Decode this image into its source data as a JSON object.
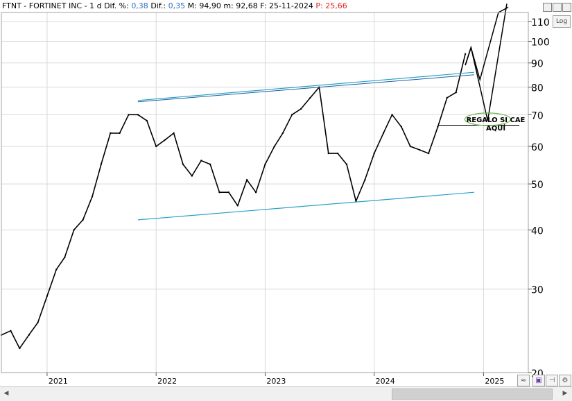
{
  "header": {
    "ticker": "FTNT - FORTINET INC -",
    "timeframe": "1 d",
    "dif_pct_label": "Dif. %:",
    "dif_pct_value": "0,38",
    "dif_label": "Dif.:",
    "dif_value": "0,35",
    "max_label": "M:",
    "max_value": "94,90",
    "min_label": "m:",
    "min_value": "92,68",
    "date_label": "F:",
    "date_value": "25-11-2024",
    "price_label": "P:",
    "price_value": "25,66"
  },
  "controls": {
    "log_label": "Log"
  },
  "annotation": {
    "line1": "REGALO SI CAE",
    "line2": "AQUÍ"
  },
  "colors": {
    "price": "#000000",
    "channel": "#2aa0c8",
    "ellipse": "#6cb84e",
    "grid": "#d8d8d8",
    "header_value": "#2f6fc0",
    "header_price": "#e02020"
  },
  "chart_data": {
    "type": "line",
    "scale": "log",
    "ylim": [
      20,
      115
    ],
    "xlim": [
      "2020-08-01",
      "2025-05-31"
    ],
    "y_ticks": [
      20,
      30,
      40,
      50,
      60,
      70,
      80,
      90,
      100,
      110
    ],
    "x_ticks": [
      "2021",
      "2022",
      "2023",
      "2024",
      "2025"
    ],
    "series": [
      {
        "x": [
          "2020-08-01",
          "2020-09-01",
          "2020-10-01",
          "2020-11-01",
          "2020-12-01",
          "2021-01-01",
          "2021-02-01",
          "2021-03-01",
          "2021-04-01",
          "2021-05-01",
          "2021-06-01",
          "2021-07-01",
          "2021-08-01",
          "2021-09-01",
          "2021-10-01",
          "2021-11-01",
          "2021-12-01",
          "2022-01-01",
          "2022-02-01",
          "2022-03-01",
          "2022-04-01",
          "2022-05-01",
          "2022-06-01",
          "2022-07-01",
          "2022-08-01",
          "2022-09-01",
          "2022-10-01",
          "2022-11-01",
          "2022-12-01",
          "2023-01-01",
          "2023-02-01",
          "2023-03-01",
          "2023-04-01",
          "2023-05-01",
          "2023-06-01",
          "2023-07-01",
          "2023-08-01",
          "2023-09-01",
          "2023-10-01",
          "2023-11-01",
          "2023-12-01",
          "2024-01-01",
          "2024-02-01",
          "2024-03-01",
          "2024-04-01",
          "2024-05-01",
          "2024-06-01",
          "2024-07-01",
          "2024-08-01",
          "2024-09-01",
          "2024-10-01",
          "2024-11-01"
        ],
        "values": [
          24,
          24.5,
          22.5,
          24,
          25.5,
          29,
          33,
          35,
          40,
          42,
          47,
          55,
          64,
          64,
          70,
          70,
          68,
          60,
          62,
          64,
          55,
          52,
          56,
          55,
          48,
          48,
          45,
          51,
          48,
          55,
          60,
          64,
          70,
          72,
          76,
          80,
          58,
          58,
          55,
          46,
          51,
          58,
          64,
          70,
          66,
          60,
          59,
          58,
          66,
          76,
          78,
          94
        ]
      }
    ],
    "channel_upper": {
      "x": [
        "2021-11-01",
        "2024-12-01"
      ],
      "values": [
        75,
        86
      ]
    },
    "channel_upper_2": {
      "x": [
        "2021-11-01",
        "2024-12-01"
      ],
      "values": [
        74.5,
        85
      ]
    },
    "channel_lower": {
      "x": [
        "2021-11-01",
        "2024-12-01"
      ],
      "values": [
        42,
        48
      ]
    },
    "support_line": {
      "x": [
        "2024-08-01",
        "2025-05-01"
      ],
      "values": [
        66.5,
        66.5
      ]
    },
    "projection_1": {
      "x": [
        "2024-11-01",
        "2024-11-20",
        "2024-12-20",
        "2025-02-20",
        "2025-03-25"
      ],
      "values": [
        89,
        97,
        83,
        115,
        118
      ]
    },
    "projection_2": {
      "x": [
        "2024-11-01",
        "2024-11-20",
        "2025-01-15",
        "2025-03-20"
      ],
      "values": [
        89,
        97,
        68,
        120
      ]
    },
    "target_zone": {
      "x": "2025-01-15",
      "value": 68
    }
  }
}
